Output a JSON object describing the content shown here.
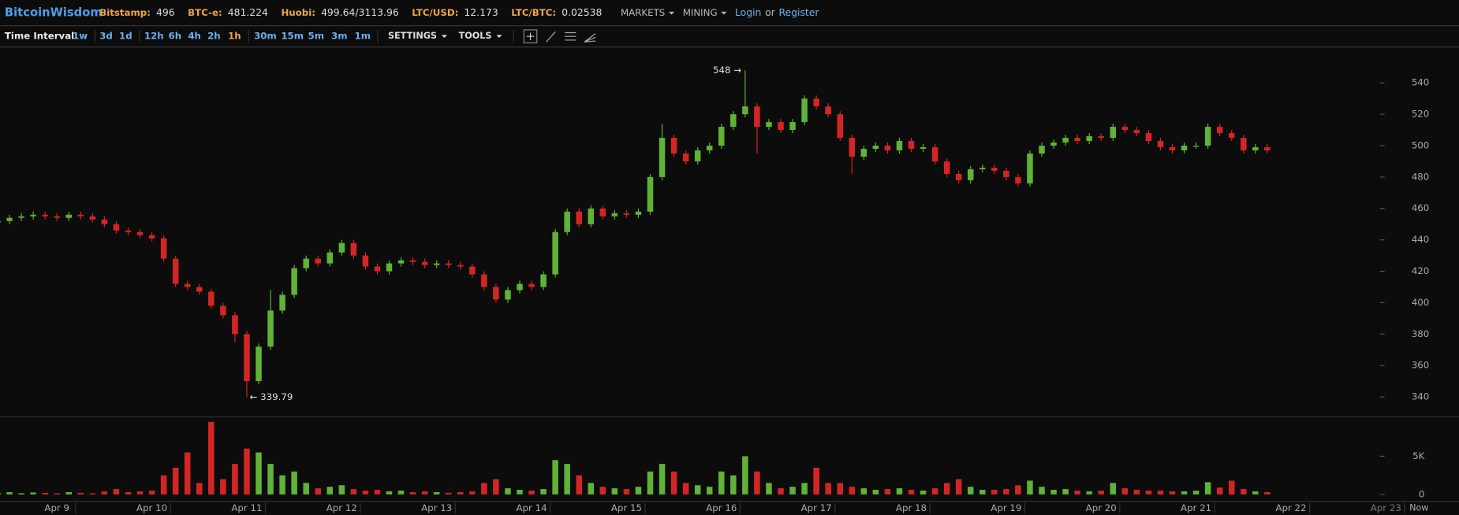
{
  "header": {
    "brand": "BitcoinWisdom",
    "tickers": [
      {
        "label": "Bitstamp:",
        "value": 496
      },
      {
        "label": "BTC-e:",
        "value": 481.224
      },
      {
        "label": "Huobi:",
        "value": "499.64/3113.96"
      },
      {
        "label": "LTC/USD:",
        "value": 12.173
      },
      {
        "label": "LTC/BTC:",
        "value": 0.02538
      }
    ],
    "menus": [
      "MARKETS",
      "MINING"
    ],
    "login": "Login",
    "or": "or",
    "register": "Register"
  },
  "toolbar": {
    "interval_label": "Time Interval:",
    "intervals": [
      "1w",
      "3d",
      "1d",
      "12h",
      "6h",
      "4h",
      "2h",
      "1h",
      "30m",
      "15m",
      "5m",
      "3m",
      "1m"
    ],
    "selected_interval": 7,
    "settings": "SETTINGS",
    "tools": "TOOLS"
  },
  "chart_data": {
    "type": "candlestick",
    "up_color": "#5fb336",
    "down_color": "#d42525",
    "x": [
      8.375,
      8.5,
      8.625,
      8.75,
      8.875,
      9,
      9.125,
      9.25,
      9.375,
      9.5,
      9.625,
      9.75,
      9.875,
      10,
      10.125,
      10.25,
      10.375,
      10.5,
      10.625,
      10.75,
      10.875,
      11,
      11.125,
      11.25,
      11.375,
      11.5,
      11.625,
      11.75,
      11.875,
      12,
      12.125,
      12.25,
      12.375,
      12.5,
      12.625,
      12.75,
      12.875,
      13,
      13.125,
      13.25,
      13.375,
      13.5,
      13.625,
      13.75,
      13.875,
      14,
      14.125,
      14.25,
      14.375,
      14.5,
      14.625,
      14.75,
      14.875,
      15,
      15.125,
      15.25,
      15.375,
      15.5,
      15.625,
      15.75,
      15.875,
      16,
      16.125,
      16.25,
      16.375,
      16.5,
      16.625,
      16.75,
      16.875,
      17,
      17.125,
      17.25,
      17.375,
      17.5,
      17.625,
      17.75,
      17.875,
      18,
      18.125,
      18.25,
      18.375,
      18.5,
      18.625,
      18.75,
      18.875,
      19,
      19.125,
      19.25,
      19.375,
      19.5,
      19.625,
      19.75,
      19.875,
      20,
      20.125,
      20.25,
      20.375,
      20.5,
      20.625,
      20.75,
      20.875,
      21,
      21.125,
      21.25,
      21.375,
      21.5,
      21.625,
      21.75
    ],
    "open": [
      451,
      452,
      454,
      455,
      456,
      455,
      454,
      456,
      455,
      453,
      450,
      446,
      445,
      443,
      441,
      428,
      412,
      410,
      407,
      398,
      392,
      380,
      350,
      372,
      395,
      405,
      422,
      428,
      425,
      432,
      438,
      430,
      423,
      420,
      425,
      427,
      426,
      424,
      425,
      424,
      423,
      418,
      410,
      402,
      408,
      412,
      410,
      418,
      445,
      458,
      450,
      460,
      455,
      457,
      456,
      458,
      480,
      505,
      495,
      490,
      497,
      500,
      512,
      520,
      525,
      512,
      515,
      510,
      515,
      530,
      525,
      520,
      505,
      493,
      498,
      500,
      497,
      503,
      498,
      499,
      490,
      482,
      478,
      485,
      486,
      484,
      480,
      476,
      495,
      500,
      502,
      505,
      503,
      506,
      505,
      512,
      510,
      508,
      503,
      499,
      497,
      500,
      500,
      512,
      508,
      505,
      497,
      499
    ],
    "high": [
      453,
      456,
      457,
      458,
      458,
      457,
      458,
      458,
      457,
      455,
      452,
      448,
      447,
      445,
      443,
      430,
      414,
      412,
      409,
      400,
      394,
      382,
      374,
      408,
      407,
      424,
      430,
      430,
      434,
      440,
      440,
      432,
      425,
      427,
      429,
      429,
      428,
      427,
      427,
      426,
      425,
      420,
      412,
      410,
      414,
      414,
      420,
      447,
      460,
      460,
      462,
      462,
      459,
      459,
      460,
      482,
      514,
      507,
      497,
      499,
      502,
      514,
      522,
      548,
      527,
      517,
      517,
      517,
      532,
      532,
      527,
      522,
      507,
      500,
      502,
      502,
      505,
      505,
      501,
      501,
      492,
      484,
      487,
      488,
      488,
      486,
      482,
      497,
      502,
      504,
      507,
      507,
      508,
      508,
      514,
      514,
      512,
      510,
      505,
      501,
      502,
      502,
      514,
      514,
      510,
      507,
      501,
      501
    ],
    "low": [
      449,
      450,
      452,
      453,
      453,
      452,
      452,
      453,
      451,
      448,
      444,
      443,
      441,
      439,
      426,
      410,
      408,
      405,
      396,
      390,
      375,
      339.79,
      348,
      370,
      393,
      403,
      420,
      423,
      423,
      430,
      428,
      421,
      418,
      418,
      423,
      424,
      422,
      422,
      422,
      421,
      416,
      408,
      400,
      400,
      406,
      408,
      408,
      416,
      443,
      448,
      448,
      453,
      453,
      454,
      454,
      456,
      478,
      493,
      488,
      488,
      495,
      498,
      510,
      518,
      495,
      510,
      508,
      508,
      513,
      523,
      518,
      503,
      482,
      491,
      496,
      495,
      495,
      496,
      496,
      488,
      480,
      476,
      476,
      483,
      482,
      478,
      474,
      474,
      493,
      498,
      500,
      501,
      501,
      503,
      503,
      508,
      506,
      501,
      497,
      495,
      495,
      498,
      498,
      506,
      503,
      495,
      495,
      495
    ],
    "close": [
      452,
      454,
      455,
      456,
      455,
      454,
      456,
      455,
      453,
      450,
      446,
      445,
      443,
      441,
      428,
      412,
      410,
      407,
      398,
      392,
      380,
      350,
      372,
      395,
      405,
      422,
      428,
      425,
      432,
      438,
      430,
      423,
      420,
      425,
      427,
      426,
      424,
      425,
      424,
      423,
      418,
      410,
      402,
      408,
      412,
      410,
      418,
      445,
      458,
      450,
      460,
      455,
      457,
      456,
      458,
      480,
      505,
      495,
      490,
      497,
      500,
      512,
      520,
      525,
      512,
      515,
      510,
      515,
      530,
      525,
      520,
      505,
      493,
      498,
      500,
      497,
      503,
      498,
      499,
      490,
      482,
      478,
      485,
      486,
      484,
      480,
      476,
      495,
      500,
      502,
      505,
      503,
      506,
      505,
      512,
      510,
      508,
      503,
      499,
      497,
      500,
      500,
      512,
      508,
      505,
      497,
      499,
      497
    ],
    "volume": [
      200,
      300,
      150,
      250,
      200,
      150,
      300,
      200,
      150,
      400,
      700,
      300,
      400,
      500,
      2500,
      3500,
      5500,
      1500,
      9500,
      2000,
      4000,
      6000,
      5500,
      4000,
      2500,
      3000,
      1500,
      800,
      1000,
      1200,
      700,
      500,
      600,
      400,
      500,
      300,
      400,
      300,
      200,
      300,
      400,
      1500,
      2000,
      800,
      600,
      500,
      700,
      4500,
      4000,
      2500,
      1500,
      1000,
      800,
      700,
      1000,
      3000,
      4000,
      3000,
      1500,
      1200,
      1000,
      3000,
      2500,
      5000,
      3000,
      1500,
      800,
      1000,
      1500,
      3500,
      1500,
      1500,
      1000,
      800,
      600,
      700,
      800,
      600,
      500,
      800,
      1500,
      2000,
      1000,
      600,
      600,
      700,
      1200,
      1800,
      1000,
      600,
      700,
      500,
      400,
      500,
      1500,
      800,
      600,
      500,
      500,
      400,
      400,
      500,
      1600,
      900,
      1800,
      700,
      400,
      300
    ],
    "high_label": "548 →",
    "low_label": "← 339.79",
    "xlim": [
      8.4,
      23.77
    ],
    "xticks": [
      {
        "value": 9,
        "label": "Apr 9"
      },
      {
        "value": 10,
        "label": "Apr 10"
      },
      {
        "value": 11,
        "label": "Apr 11"
      },
      {
        "value": 12,
        "label": "Apr 12"
      },
      {
        "value": 13,
        "label": "Apr 13"
      },
      {
        "value": 14,
        "label": "Apr 14"
      },
      {
        "value": 15,
        "label": "Apr 15"
      },
      {
        "value": 16,
        "label": "Apr 16"
      },
      {
        "value": 17,
        "label": "Apr 17"
      },
      {
        "value": 18,
        "label": "Apr 18"
      },
      {
        "value": 19,
        "label": "Apr 19"
      },
      {
        "value": 20,
        "label": "Apr 20"
      },
      {
        "value": 21,
        "label": "Apr 21"
      },
      {
        "value": 22,
        "label": "Apr 22"
      },
      {
        "value": 23,
        "label": "Apr 23"
      }
    ],
    "now_label": "Now",
    "ylim": [
      327.6,
      563.1
    ],
    "yticks": [
      340,
      360,
      380,
      400,
      420,
      440,
      460,
      480,
      500,
      520,
      540
    ],
    "volume_ylim": [
      0,
      10100
    ],
    "volume_ticks": [
      0,
      {
        "value": 5000,
        "label": "5K"
      }
    ]
  }
}
